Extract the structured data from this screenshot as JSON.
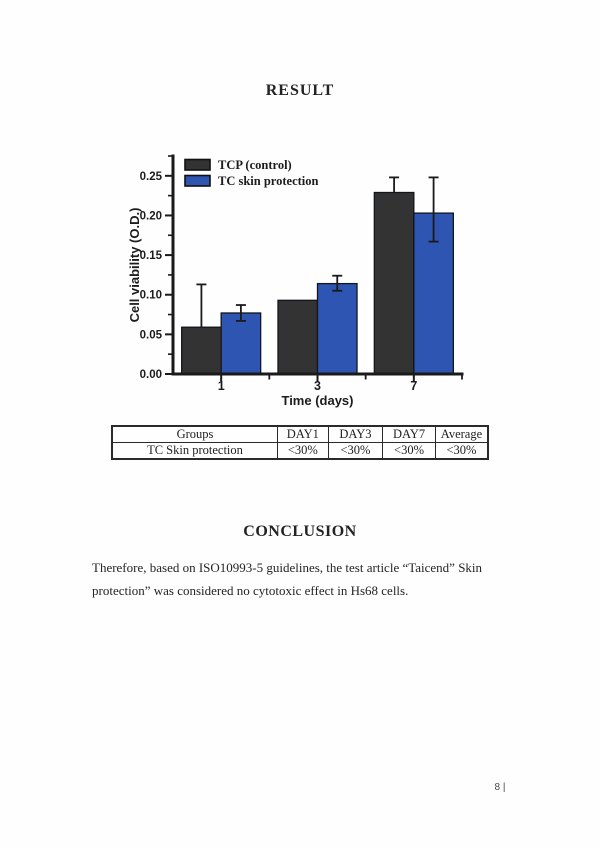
{
  "page": {
    "result_heading": "RESULT",
    "conclusion_heading": "CONCLUSION",
    "conclusion_text": "Therefore, based on ISO10993-5 guidelines, the test article “Taicend” Skin protection” was considered no cytotoxic effect in Hs68 cells.",
    "page_number": "8 |"
  },
  "table": {
    "headers": [
      "Groups",
      "DAY1",
      "DAY3",
      "DAY7",
      "Average"
    ],
    "rows": [
      [
        "TC Skin protection",
        "<30%",
        "<30%",
        "<30%",
        "<30%"
      ]
    ]
  },
  "chart_data": {
    "type": "bar",
    "title": "",
    "xlabel": "Time (days)",
    "ylabel": "Cell viability (O.D.)",
    "categories": [
      "1",
      "3",
      "7"
    ],
    "series": [
      {
        "name": "TCP (control)",
        "color": "#333333",
        "values": [
          0.059,
          0.093,
          0.229
        ],
        "err_up": [
          0.054,
          0,
          0.019
        ],
        "err_down": [
          0,
          0,
          0
        ]
      },
      {
        "name": "TC skin protection",
        "color": "#2e55b1",
        "values": [
          0.077,
          0.114,
          0.203
        ],
        "err_up": [
          0.01,
          0.01,
          0.045
        ],
        "err_down": [
          0.01,
          0.009,
          0.036
        ]
      }
    ],
    "ylim": [
      0,
      0.275
    ],
    "yticks": [
      0,
      0.05,
      0.1,
      0.15,
      0.2,
      0.25
    ],
    "ytick_labels": [
      "0.00",
      "0.05",
      "0.10",
      "0.15",
      "0.20",
      "0.25"
    ],
    "y_minor_ticks": [
      0.025,
      0.075,
      0.125,
      0.175,
      0.225,
      0.275
    ],
    "legend_position": "top-left",
    "grid": false,
    "bar_outline": "#12151c",
    "axis_color": "#1a1a1a"
  }
}
